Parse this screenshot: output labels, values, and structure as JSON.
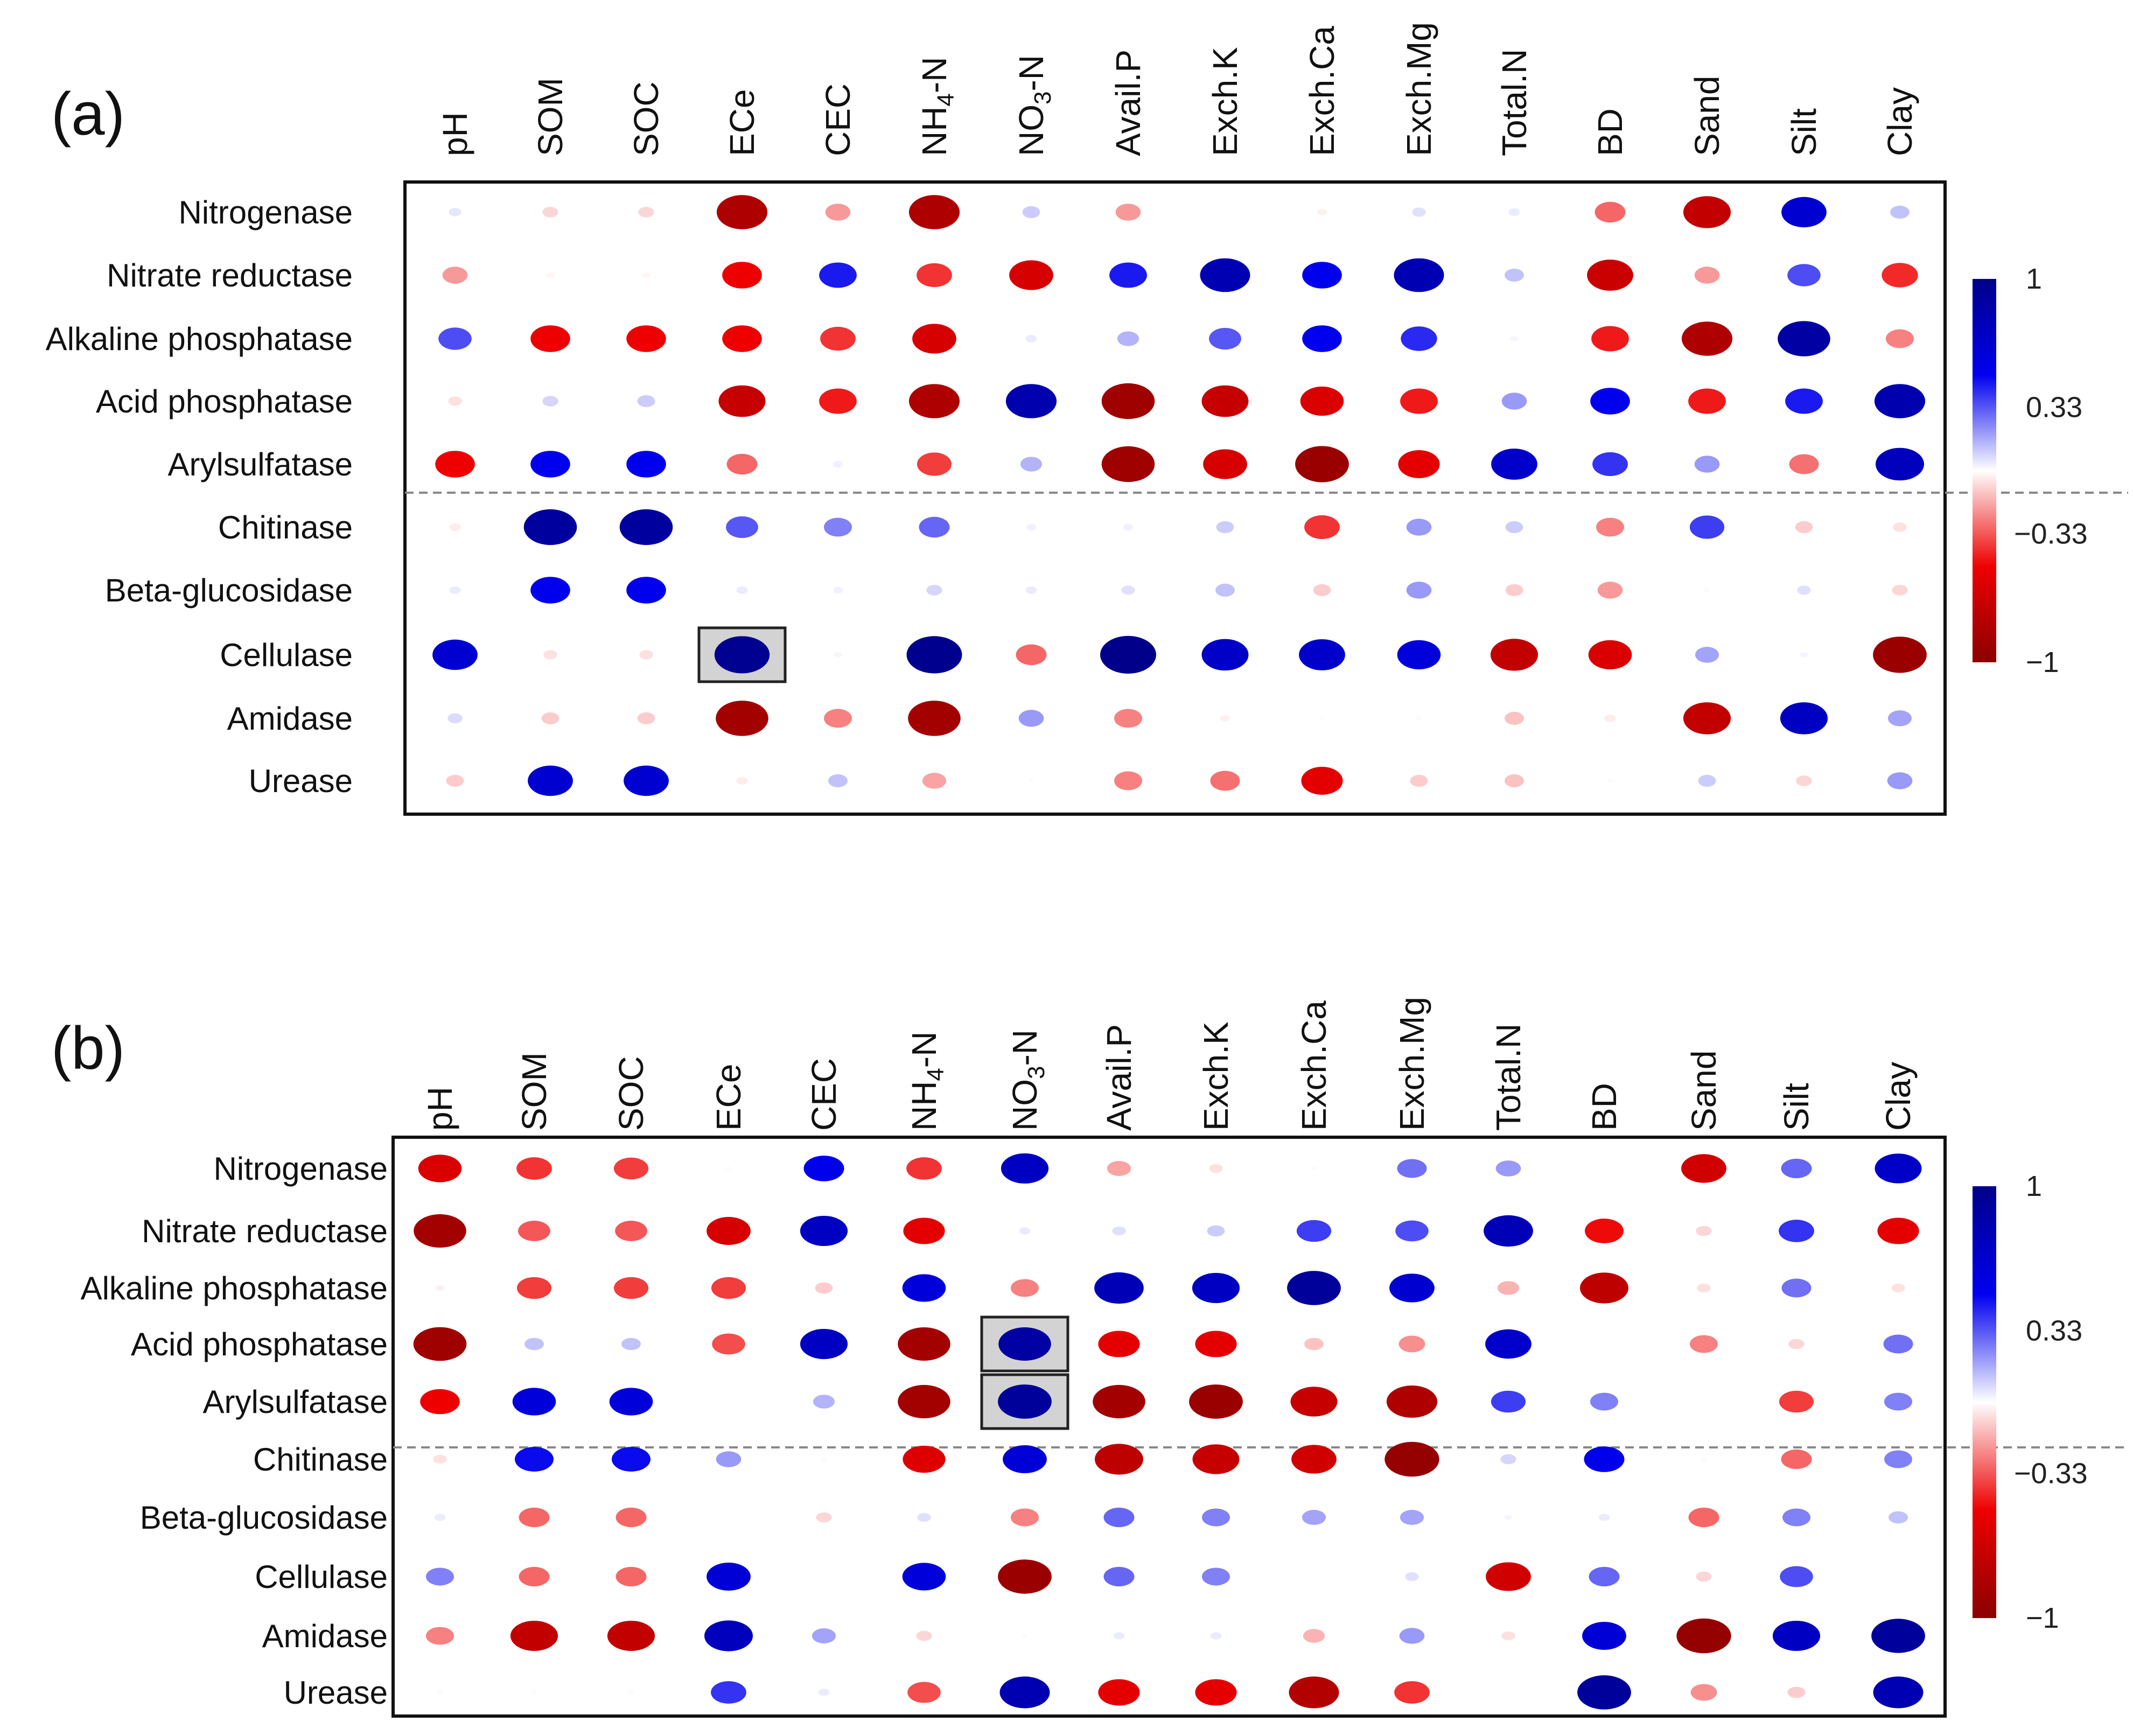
{
  "legend": {
    "ticks": [
      {
        "value": 1,
        "label": "1"
      },
      {
        "value": 0.33,
        "label": "0.33"
      },
      {
        "value": -0.33,
        "label": "−0.33"
      },
      {
        "value": -1,
        "label": "−1"
      }
    ],
    "colors": {
      "positive_max": "#00008b",
      "positive_mid": "#0000ee",
      "neutral": "#ffffff",
      "negative_mid": "#ee0000",
      "negative_max": "#8b0000"
    }
  },
  "chart_data": [
    {
      "type": "heatmap",
      "panel_label": "(a)",
      "columns": [
        "pH",
        "SOM",
        "SOC",
        "ECe",
        "CEC",
        "NH4-N",
        "NO3-N",
        "Avail.P",
        "Exch.K",
        "Exch.Ca",
        "Exch.Mg",
        "Total.N",
        "BD",
        "Sand",
        "Silt",
        "Clay"
      ],
      "rows": [
        "Nitrogenase",
        "Nitrate reductase",
        "Alkaline phosphatase",
        "Acid phosphatase",
        "Arylsulfatase",
        "Chitinase",
        "Beta-glucosidase",
        "Cellulase",
        "Amidase",
        "Urease"
      ],
      "values": [
        [
          0.05,
          -0.08,
          -0.08,
          -0.82,
          -0.2,
          -0.82,
          0.1,
          -0.2,
          0,
          -0.03,
          0.06,
          0.04,
          -0.3,
          -0.72,
          0.65,
          0.12
        ],
        [
          -0.2,
          -0.02,
          -0.02,
          -0.5,
          0.45,
          -0.4,
          -0.62,
          0.45,
          0.8,
          0.5,
          0.8,
          0.12,
          -0.68,
          -0.2,
          0.35,
          -0.42
        ],
        [
          0.35,
          -0.5,
          -0.5,
          -0.5,
          -0.4,
          -0.62,
          0.04,
          0.15,
          0.33,
          0.5,
          0.42,
          0.02,
          -0.45,
          -0.82,
          0.88,
          -0.25
        ],
        [
          -0.06,
          0.08,
          0.1,
          -0.7,
          -0.45,
          -0.82,
          0.82,
          -0.9,
          -0.7,
          -0.6,
          -0.45,
          0.2,
          0.5,
          -0.45,
          0.45,
          0.82
        ],
        [
          -0.5,
          0.5,
          0.5,
          -0.3,
          0.03,
          -0.38,
          0.15,
          -0.9,
          -0.62,
          -0.92,
          -0.55,
          0.68,
          0.4,
          0.2,
          -0.28,
          0.75
        ],
        [
          -0.04,
          0.9,
          0.9,
          0.33,
          0.25,
          0.3,
          0.03,
          0.03,
          0.1,
          -0.4,
          0.2,
          0.1,
          -0.25,
          0.38,
          -0.1,
          -0.06
        ],
        [
          0.04,
          0.5,
          0.5,
          0.04,
          0.03,
          0.08,
          0.04,
          0.06,
          0.12,
          -0.1,
          0.2,
          -0.1,
          -0.2,
          0.01,
          0.06,
          -0.08
        ],
        [
          0.65,
          -0.06,
          -0.06,
          0.97,
          0.02,
          0.98,
          -0.3,
          1.0,
          0.7,
          0.68,
          0.6,
          -0.72,
          -0.6,
          0.18,
          0.02,
          -0.92
        ],
        [
          0.07,
          -0.1,
          -0.1,
          -0.88,
          -0.25,
          -0.88,
          0.2,
          -0.25,
          -0.03,
          -0.01,
          -0.01,
          -0.12,
          -0.04,
          -0.72,
          0.72,
          0.18
        ],
        [
          -0.1,
          0.65,
          0.65,
          -0.04,
          0.12,
          -0.18,
          -0.01,
          -0.25,
          -0.28,
          -0.55,
          -0.1,
          -0.12,
          0.01,
          0.1,
          -0.08,
          0.2
        ]
      ],
      "highlighted_cells": [
        [
          "Cellulase",
          "ECe"
        ]
      ]
    },
    {
      "type": "heatmap",
      "panel_label": "(b)",
      "columns": [
        "pH",
        "SOM",
        "SOC",
        "ECe",
        "CEC",
        "NH4-N",
        "NO3-N",
        "Avail.P",
        "Exch.K",
        "Exch.Ca",
        "Exch.Mg",
        "Total.N",
        "BD",
        "Sand",
        "Silt",
        "Clay"
      ],
      "rows": [
        "Nitrogenase",
        "Nitrate reductase",
        "Alkaline phosphatase",
        "Acid phosphatase",
        "Arylsulfatase",
        "Chitinase",
        "Beta-glucosidase",
        "Cellulase",
        "Amidase",
        "Urease"
      ],
      "values": [
        [
          -0.6,
          -0.4,
          -0.38,
          -0.01,
          0.52,
          -0.4,
          0.72,
          -0.18,
          -0.06,
          -0.01,
          0.28,
          0.2,
          0,
          -0.65,
          0.3,
          0.7
        ],
        [
          -0.88,
          -0.33,
          -0.33,
          -0.62,
          0.72,
          -0.55,
          0.04,
          0.06,
          0.1,
          0.38,
          0.35,
          0.78,
          -0.48,
          -0.08,
          0.4,
          -0.55
        ],
        [
          -0.03,
          -0.38,
          -0.38,
          -0.38,
          -0.1,
          0.6,
          -0.25,
          0.78,
          0.72,
          0.92,
          0.65,
          -0.15,
          -0.75,
          -0.06,
          0.28,
          -0.06
        ],
        [
          -0.9,
          0.12,
          0.12,
          -0.35,
          0.72,
          -0.88,
          0.88,
          -0.55,
          -0.55,
          -0.12,
          -0.22,
          0.68,
          0,
          -0.25,
          -0.08,
          0.28
        ],
        [
          -0.5,
          0.6,
          0.6,
          0,
          0.15,
          -0.88,
          0.92,
          -0.88,
          -0.92,
          -0.7,
          -0.82,
          0.38,
          0.25,
          0,
          -0.38,
          0.25
        ],
        [
          -0.06,
          0.48,
          0.48,
          0.2,
          0.01,
          -0.58,
          0.62,
          -0.75,
          -0.7,
          -0.65,
          -0.95,
          0.08,
          0.52,
          0.01,
          -0.3,
          0.25
        ],
        [
          0.04,
          -0.3,
          -0.3,
          0,
          -0.08,
          0.06,
          -0.25,
          0.3,
          0.25,
          0.18,
          0.18,
          0.02,
          0.04,
          -0.3,
          0.25,
          0.12
        ],
        [
          0.25,
          -0.3,
          -0.3,
          0.62,
          0,
          0.6,
          -0.92,
          0.3,
          0.25,
          0,
          0.06,
          -0.65,
          0.3,
          -0.08,
          0.35,
          0
        ],
        [
          -0.25,
          -0.72,
          -0.72,
          0.75,
          0.18,
          -0.08,
          -0.01,
          0.04,
          0.04,
          -0.15,
          0.2,
          -0.06,
          0.62,
          -0.95,
          0.72,
          0.92
        ],
        [
          0.01,
          0.01,
          0.01,
          0.4,
          0.04,
          -0.35,
          0.8,
          -0.55,
          -0.55,
          -0.8,
          -0.4,
          0,
          0.92,
          -0.22,
          -0.1,
          0.8
        ]
      ],
      "highlighted_cells": [
        [
          "Acid phosphatase",
          "NO3-N"
        ],
        [
          "Arylsulfatase",
          "NO3-N"
        ]
      ]
    }
  ]
}
